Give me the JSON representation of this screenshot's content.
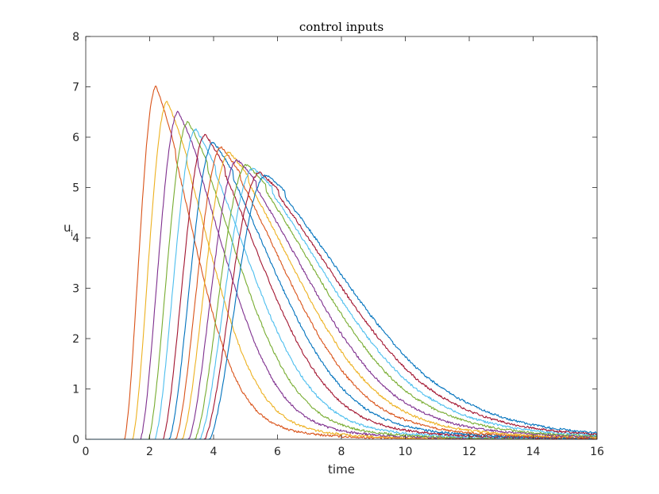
{
  "chart_data": {
    "type": "line",
    "title": "control inputs",
    "xlabel": "time",
    "ylabel": "u",
    "ylabel_subscript": "i",
    "xlim": [
      0,
      16
    ],
    "ylim": [
      0,
      8
    ],
    "xticks": [
      "0",
      "2",
      "4",
      "6",
      "8",
      "10",
      "12",
      "14",
      "16"
    ],
    "yticks": [
      "0",
      "1",
      "2",
      "3",
      "4",
      "5",
      "6",
      "7",
      "8"
    ],
    "grid": false,
    "legend": "none",
    "series": [
      {
        "color": "#D95319",
        "peak_time": 2.2,
        "peak_value": 7.0,
        "start_time": 1.2,
        "end_time": 16
      },
      {
        "color": "#EDB120",
        "peak_time": 2.55,
        "peak_value": 6.7,
        "start_time": 1.45,
        "end_time": 16
      },
      {
        "color": "#7E2F8E",
        "peak_time": 2.9,
        "peak_value": 6.5,
        "start_time": 1.7,
        "end_time": 16
      },
      {
        "color": "#77AC30",
        "peak_time": 3.2,
        "peak_value": 6.3,
        "start_time": 1.95,
        "end_time": 16
      },
      {
        "color": "#4DBEEE",
        "peak_time": 3.45,
        "peak_value": 6.15,
        "start_time": 2.15,
        "end_time": 16
      },
      {
        "color": "#A2142F",
        "peak_time": 3.75,
        "peak_value": 6.05,
        "start_time": 2.4,
        "end_time": 16
      },
      {
        "color": "#0072BD",
        "peak_time": 4.0,
        "peak_value": 5.9,
        "start_time": 2.6,
        "end_time": 16
      },
      {
        "color": "#D95319",
        "peak_time": 4.25,
        "peak_value": 5.8,
        "start_time": 2.8,
        "end_time": 16
      },
      {
        "color": "#EDB120",
        "peak_time": 4.5,
        "peak_value": 5.7,
        "start_time": 3.0,
        "end_time": 16
      },
      {
        "color": "#7E2F8E",
        "peak_time": 4.75,
        "peak_value": 5.55,
        "start_time": 3.2,
        "end_time": 16
      },
      {
        "color": "#77AC30",
        "peak_time": 5.05,
        "peak_value": 5.45,
        "start_time": 3.4,
        "end_time": 16
      },
      {
        "color": "#4DBEEE",
        "peak_time": 5.25,
        "peak_value": 5.38,
        "start_time": 3.55,
        "end_time": 16
      },
      {
        "color": "#A2142F",
        "peak_time": 5.45,
        "peak_value": 5.3,
        "start_time": 3.7,
        "end_time": 16
      },
      {
        "color": "#0072BD",
        "peak_time": 5.65,
        "peak_value": 5.25,
        "start_time": 3.85,
        "end_time": 16
      }
    ]
  }
}
